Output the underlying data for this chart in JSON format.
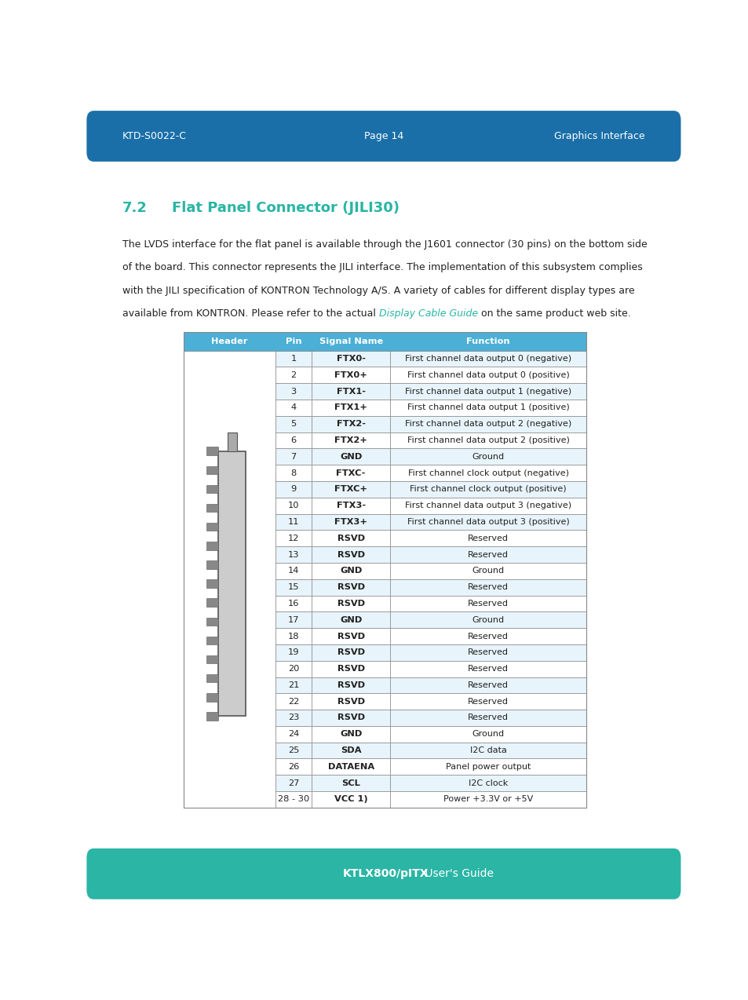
{
  "top_bar_color": "#1a6fa8",
  "bottom_bar_color": "#2ab5a5",
  "top_bar_height": 0.042,
  "bottom_bar_height": 0.042,
  "top_left_text": "KTD-S0022-C",
  "top_center_text": "Page 14",
  "top_right_text": "Graphics Interface",
  "bottom_center_text_bold": "KTLX800/pITX",
  "bottom_center_text_normal": " User's Guide",
  "section_number": "7.2",
  "section_title": "Flat Panel Connector (JILI30)",
  "section_color": "#2ab5a5",
  "body_lines": [
    "The LVDS interface for the flat panel is available through the J1601 connector (30 pins) on the bottom side",
    "of the board. This connector represents the JILI interface. The implementation of this subsystem complies",
    "with the JILI specification of KONTRON Technology A/S. A variety of cables for different display types are",
    "available from KONTRON. Please refer to the actual"
  ],
  "link_text": "Display Cable Guide",
  "body_text_end": " on the same product web site.",
  "table_header_bg": "#4bafd6",
  "table_header_text_color": "#ffffff",
  "table_row_alt_color": "#e8f4fb",
  "table_row_color": "#ffffff",
  "table_border_color": "#888888",
  "table_header_cols": [
    "Header",
    "Pin",
    "Signal Name",
    "Function"
  ],
  "table_rows": [
    [
      "1",
      "FTX0-",
      "First channel data output 0 (negative)"
    ],
    [
      "2",
      "FTX0+",
      "First channel data output 0 (positive)"
    ],
    [
      "3",
      "FTX1-",
      "First channel data output 1 (negative)"
    ],
    [
      "4",
      "FTX1+",
      "First channel data output 1 (positive)"
    ],
    [
      "5",
      "FTX2-",
      "First channel data output 2 (negative)"
    ],
    [
      "6",
      "FTX2+",
      "First channel data output 2 (positive)"
    ],
    [
      "7",
      "GND",
      "Ground"
    ],
    [
      "8",
      "FTXC-",
      "First channel clock output (negative)"
    ],
    [
      "9",
      "FTXC+",
      "First channel clock output (positive)"
    ],
    [
      "10",
      "FTX3-",
      "First channel data output 3 (negative)"
    ],
    [
      "11",
      "FTX3+",
      "First channel data output 3 (positive)"
    ],
    [
      "12",
      "RSVD",
      "Reserved"
    ],
    [
      "13",
      "RSVD",
      "Reserved"
    ],
    [
      "14",
      "GND",
      "Ground"
    ],
    [
      "15",
      "RSVD",
      "Reserved"
    ],
    [
      "16",
      "RSVD",
      "Reserved"
    ],
    [
      "17",
      "GND",
      "Ground"
    ],
    [
      "18",
      "RSVD",
      "Reserved"
    ],
    [
      "19",
      "RSVD",
      "Reserved"
    ],
    [
      "20",
      "RSVD",
      "Reserved"
    ],
    [
      "21",
      "RSVD",
      "Reserved"
    ],
    [
      "22",
      "RSVD",
      "Reserved"
    ],
    [
      "23",
      "RSVD",
      "Reserved"
    ],
    [
      "24",
      "GND",
      "Ground"
    ],
    [
      "25",
      "SDA",
      "I2C data"
    ],
    [
      "26",
      "DATAENA",
      "Panel power output"
    ],
    [
      "27",
      "SCL",
      "I2C clock"
    ],
    [
      "28 - 30",
      "VCC 1)",
      "Power +3.3V or +5V"
    ]
  ],
  "bg_color": "#ffffff",
  "text_color": "#222222",
  "font_size_body": 9,
  "font_size_table": 8.2,
  "font_size_header_bar": 9,
  "font_size_section": 13
}
